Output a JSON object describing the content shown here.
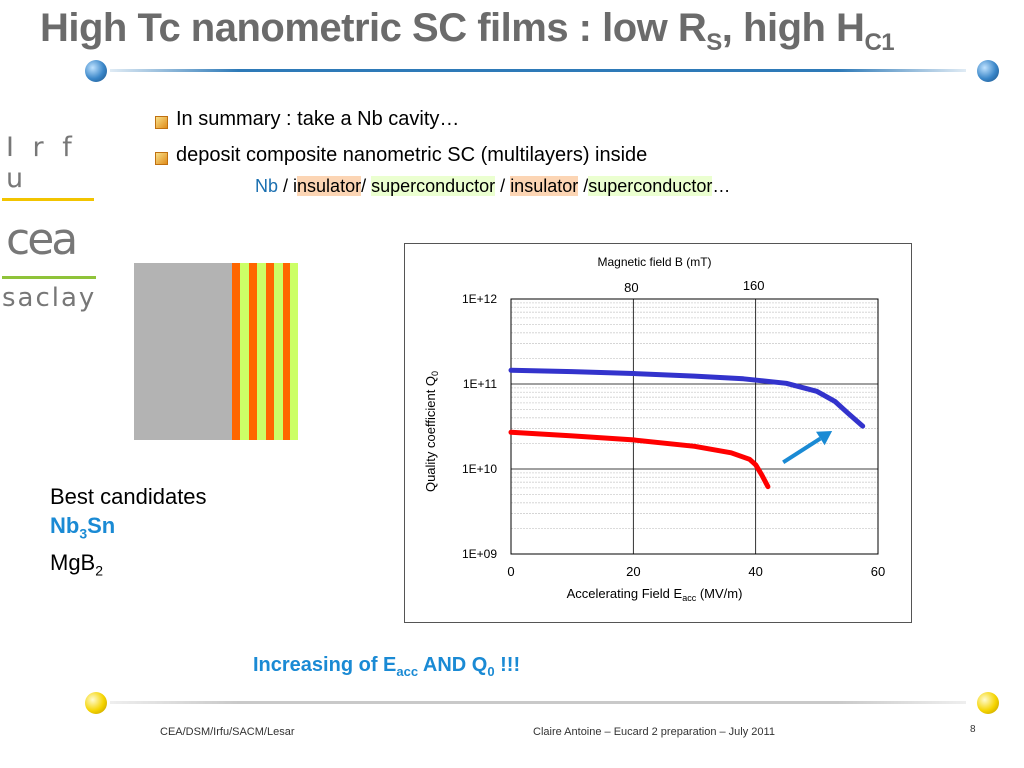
{
  "slide": {
    "title_main": "High Tc nanometric SC films : low R",
    "title_sub1": "S",
    "title_mid": ", high H",
    "title_sub2": "C1",
    "bullets": [
      "In summary  : take a Nb cavity…",
      "deposit composite nanometric SC (multilayers) inside"
    ],
    "layer_line": {
      "nb": "Nb",
      "sep1": " / i",
      "ins1": "nsulator",
      "sep2": "/ ",
      "sc1": "superconductor",
      "sep3": " / ",
      "ins2": "insulator",
      "sep4": " /",
      "sc2": "superconductor",
      "ellipsis": "…"
    },
    "candidates": {
      "heading": "Best candidates",
      "c1_main": "Nb",
      "c1_sub": "3",
      "c1_end": "Sn",
      "c2_main": "MgB",
      "c2_sub": "2"
    },
    "emphasis": {
      "main": "Increasing of E",
      "sub1": "acc",
      "mid": " AND Q",
      "sub2": "0",
      "end": " !!!"
    },
    "footer_left": "CEA/DSM/Irfu/SACM/Lesar",
    "footer_right": "Claire Antoine – Eucard 2 preparation – July 2011",
    "page_number": "8"
  },
  "logos": {
    "irfu": "I r f u",
    "cea": "cea",
    "saclay": "saclay"
  },
  "colors": {
    "title_gray": "#6b6b6b",
    "accent_blue": "#1a8ad4",
    "rule_blue": "#2e7ab8",
    "insulator_orange": "#ff6600",
    "superconductor_green": "#ccff66",
    "nb_gray": "#b3b3b3",
    "highlight_orange": "#fcd5b4",
    "highlight_green": "#ebffd0"
  },
  "chart_data": {
    "type": "line",
    "title": "Magnetic field B (mT)",
    "top_axis_ticks": [
      {
        "label": "80",
        "x": 20
      },
      {
        "label": "160",
        "x": 40
      }
    ],
    "xlabel_main": "Accelerating Field E",
    "xlabel_sub": "acc",
    "xlabel_end": " (MV/m)",
    "ylabel_main": "Quality coefficient Q",
    "ylabel_sub": "0",
    "xlim": [
      0,
      60
    ],
    "ylim": [
      1000000000.0,
      1000000000000.0
    ],
    "yscale": "log",
    "x_ticks": [
      0,
      20,
      40,
      60
    ],
    "y_ticks": [
      {
        "value": 1000000000.0,
        "label": "1E+09"
      },
      {
        "value": 10000000000.0,
        "label": "1E+10"
      },
      {
        "value": 100000000000.0,
        "label": "1E+11"
      },
      {
        "value": 1000000000000.0,
        "label": "1E+12"
      }
    ],
    "grid": true,
    "series": [
      {
        "color": "#3333cc",
        "x": [
          0,
          10,
          20,
          30,
          38,
          45,
          50,
          53,
          55,
          57.5
        ],
        "y": [
          145000000000.0,
          140000000000.0,
          133000000000.0,
          124000000000.0,
          115000000000.0,
          102000000000.0,
          82000000000.0,
          62000000000.0,
          46000000000.0,
          32000000000.0
        ]
      },
      {
        "color": "#ff0000",
        "x": [
          0,
          10,
          20,
          30,
          36,
          39,
          40,
          41,
          42
        ],
        "y": [
          27000000000.0,
          24500000000.0,
          22000000000.0,
          18500000000.0,
          15500000000.0,
          13000000000.0,
          11200000000.0,
          8500000000.0,
          6200000000.0
        ]
      }
    ],
    "arrow": {
      "from": [
        44.5,
        12000000000.0
      ],
      "to": [
        52.5,
        28000000000.0
      ],
      "color": "#1a8ad4"
    }
  }
}
